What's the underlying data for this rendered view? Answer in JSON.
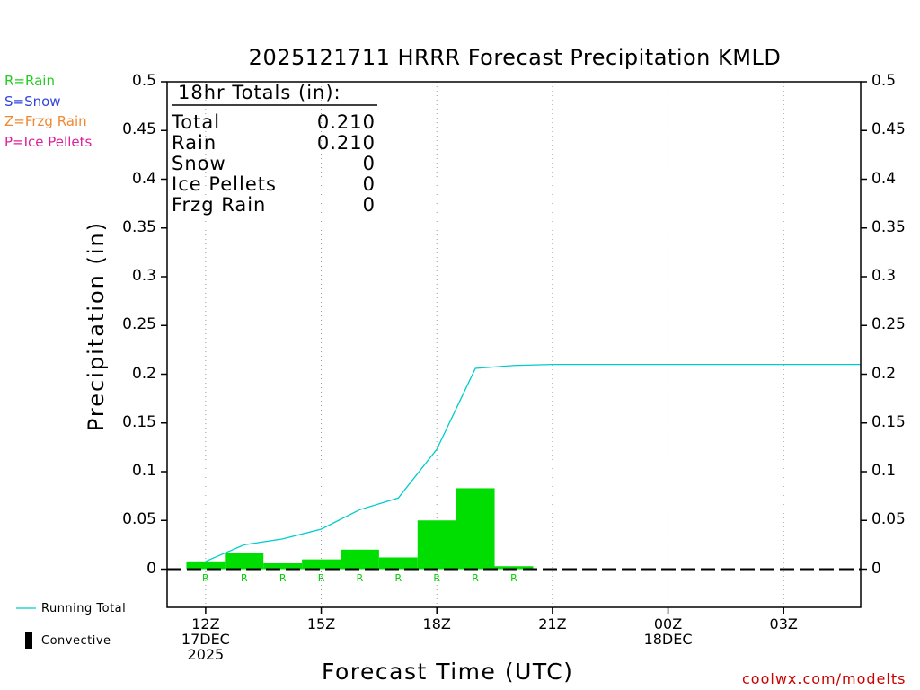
{
  "chart_data": {
    "type": "bar",
    "title": "2025121711 HRRR Forecast Precipitation KMLD",
    "xlabel": "Forecast Time (UTC)",
    "ylabel": "Precipitation (in)",
    "ylim": [
      0,
      0.5
    ],
    "yticks": [
      "0",
      "0.05",
      "0.1",
      "0.15",
      "0.2",
      "0.25",
      "0.3",
      "0.35",
      "0.4",
      "0.45",
      "0.5"
    ],
    "yticks_values": [
      0,
      0.05,
      0.1,
      0.15,
      0.2,
      0.25,
      0.3,
      0.35,
      0.4,
      0.45,
      0.5
    ],
    "xticks": [
      {
        "hour": 0,
        "lines": [
          "12Z",
          "17DEC",
          "2025"
        ]
      },
      {
        "hour": 3,
        "lines": [
          "15Z"
        ]
      },
      {
        "hour": 6,
        "lines": [
          "18Z"
        ]
      },
      {
        "hour": 9,
        "lines": [
          "21Z"
        ]
      },
      {
        "hour": 12,
        "lines": [
          "00Z",
          "18DEC"
        ]
      },
      {
        "hour": 15,
        "lines": [
          "03Z"
        ]
      }
    ],
    "xlim": [
      -1,
      17
    ],
    "grid_x": true,
    "hours": [
      0,
      1,
      2,
      3,
      4,
      5,
      6,
      7,
      8,
      9,
      10,
      11,
      12,
      13,
      14,
      15,
      16,
      17
    ],
    "series": [
      {
        "name": "Rain",
        "color": "#00dd00",
        "values": [
          0.008,
          0.017,
          0.006,
          0.01,
          0.02,
          0.012,
          0.05,
          0.083,
          0.003,
          0,
          0,
          0,
          0,
          0,
          0,
          0,
          0,
          0
        ]
      },
      {
        "name": "Running Total",
        "color": "#00cccc",
        "values": [
          0.008,
          0.025,
          0.031,
          0.041,
          0.061,
          0.073,
          0.123,
          0.206,
          0.209,
          0.21,
          0.21,
          0.21,
          0.21,
          0.21,
          0.21,
          0.21,
          0.21,
          0.21
        ]
      }
    ],
    "type_marks": [
      "R",
      "R",
      "R",
      "R",
      "R",
      "R",
      "R",
      "R",
      "R",
      "",
      "",
      "",
      "",
      "",
      "",
      "",
      "",
      ""
    ],
    "totals": {
      "header": "18hr Totals (in):",
      "rows": [
        {
          "label": "Total",
          "value": "0.210"
        },
        {
          "label": "Rain",
          "value": "0.210"
        },
        {
          "label": "Snow",
          "value": "0"
        },
        {
          "label": "Ice Pellets",
          "value": "0"
        },
        {
          "label": "Frzg Rain",
          "value": "0"
        }
      ]
    }
  },
  "type_key": [
    {
      "text": "R=Rain",
      "color": "#22cc22"
    },
    {
      "text": "S=Snow",
      "color": "#3344dd"
    },
    {
      "text": "Z=Frzg Rain",
      "color": "#ee8833"
    },
    {
      "text": "P=Ice Pellets",
      "color": "#dd2299"
    }
  ],
  "legend": {
    "running_total": "Running Total",
    "running_total_color": "#00cccc",
    "convective": "Convective",
    "convective_color": "#000000"
  },
  "credit": "coolwx.com/modelts"
}
